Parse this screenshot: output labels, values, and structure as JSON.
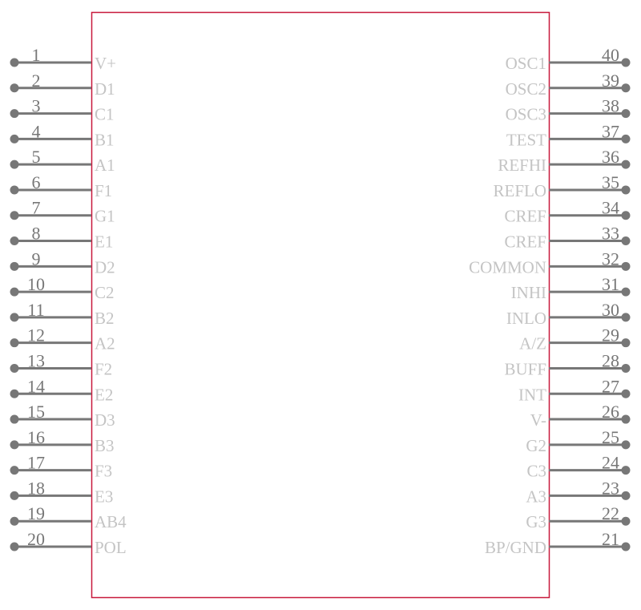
{
  "colors": {
    "outline": "#c8193c",
    "pin": "#777777",
    "label": "#c4c4c4"
  },
  "left_pins": [
    {
      "number": "1",
      "label": "V+"
    },
    {
      "number": "2",
      "label": "D1"
    },
    {
      "number": "3",
      "label": "C1"
    },
    {
      "number": "4",
      "label": "B1"
    },
    {
      "number": "5",
      "label": "A1"
    },
    {
      "number": "6",
      "label": "F1"
    },
    {
      "number": "7",
      "label": "G1"
    },
    {
      "number": "8",
      "label": "E1"
    },
    {
      "number": "9",
      "label": "D2"
    },
    {
      "number": "10",
      "label": "C2"
    },
    {
      "number": "11",
      "label": "B2"
    },
    {
      "number": "12",
      "label": "A2"
    },
    {
      "number": "13",
      "label": "F2"
    },
    {
      "number": "14",
      "label": "E2"
    },
    {
      "number": "15",
      "label": "D3"
    },
    {
      "number": "16",
      "label": "B3"
    },
    {
      "number": "17",
      "label": "F3"
    },
    {
      "number": "18",
      "label": "E3"
    },
    {
      "number": "19",
      "label": "AB4"
    },
    {
      "number": "20",
      "label": "POL"
    }
  ],
  "right_pins": [
    {
      "number": "40",
      "label": "OSC1"
    },
    {
      "number": "39",
      "label": "OSC2"
    },
    {
      "number": "38",
      "label": "OSC3"
    },
    {
      "number": "37",
      "label": "TEST"
    },
    {
      "number": "36",
      "label": "REFHI"
    },
    {
      "number": "35",
      "label": "REFLO"
    },
    {
      "number": "34",
      "label": "CREF"
    },
    {
      "number": "33",
      "label": "CREF"
    },
    {
      "number": "32",
      "label": "COMMON"
    },
    {
      "number": "31",
      "label": "INHI"
    },
    {
      "number": "30",
      "label": "INLO"
    },
    {
      "number": "29",
      "label": "A/Z"
    },
    {
      "number": "28",
      "label": "BUFF"
    },
    {
      "number": "27",
      "label": "INT"
    },
    {
      "number": "26",
      "label": "V-"
    },
    {
      "number": "25",
      "label": "G2"
    },
    {
      "number": "24",
      "label": "C3"
    },
    {
      "number": "23",
      "label": "A3"
    },
    {
      "number": "22",
      "label": "G3"
    },
    {
      "number": "21",
      "label": "BP/GND"
    }
  ]
}
